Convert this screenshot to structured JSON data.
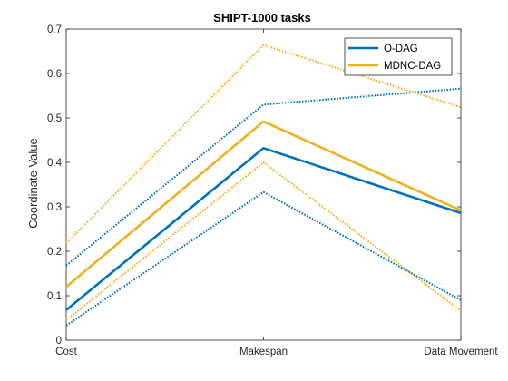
{
  "chart_data": {
    "type": "line",
    "title": "SHIPT-1000 tasks",
    "xlabel": "",
    "ylabel": "Coordinate Value",
    "categories": [
      "Cost",
      "Makespan",
      "Data Movement"
    ],
    "ylim": [
      0,
      0.7
    ],
    "yticks": [
      0,
      0.1,
      0.2,
      0.3,
      0.4,
      0.5,
      0.6,
      0.7
    ],
    "ytick_labels": [
      "0",
      "0.1",
      "0.2",
      "0.3",
      "0.4",
      "0.5",
      "0.6",
      "0.7"
    ],
    "grid": false,
    "legend_position": "top-right",
    "series": [
      {
        "name": "O-DAG",
        "color": "#0072BD",
        "style": "solid",
        "values": [
          0.068,
          0.432,
          0.286
        ],
        "in_legend": true
      },
      {
        "color": "#0072BD",
        "style": "dotted",
        "values": [
          0.168,
          0.53,
          0.566
        ],
        "in_legend": false
      },
      {
        "color": "#0072BD",
        "style": "dotted",
        "values": [
          0.033,
          0.333,
          0.09
        ],
        "in_legend": false
      },
      {
        "name": "MDNC-DAG",
        "color": "#EDB120",
        "style": "solid",
        "values": [
          0.12,
          0.492,
          0.292
        ],
        "in_legend": true
      },
      {
        "color": "#EDB120",
        "style": "dotted",
        "values": [
          0.218,
          0.664,
          0.524
        ],
        "in_legend": false
      },
      {
        "color": "#EDB120",
        "style": "dotted",
        "values": [
          0.045,
          0.4,
          0.066
        ],
        "in_legend": false
      }
    ]
  }
}
